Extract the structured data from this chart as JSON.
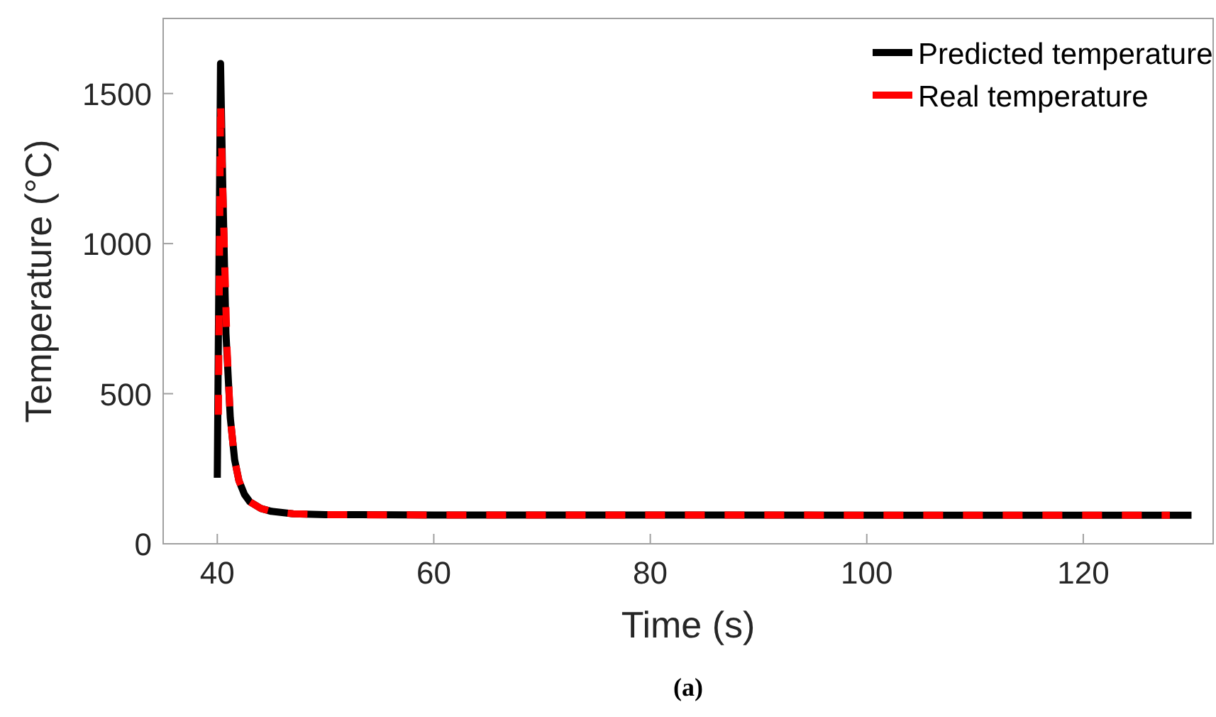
{
  "chart_data": {
    "type": "line",
    "xlabel": "Time (s)",
    "ylabel": "Temperature (°C)",
    "xlim": [
      35,
      132
    ],
    "ylim": [
      0,
      1750
    ],
    "xticks": [
      40,
      60,
      80,
      100,
      120
    ],
    "yticks": [
      0,
      500,
      1000,
      1500
    ],
    "legend": "top right",
    "grid": false,
    "annotations": [
      "(a)"
    ],
    "series": [
      {
        "name": "Predicted temperature",
        "color": "#000000",
        "line_style": "solid",
        "x": [
          40,
          40.3,
          40.5,
          40.8,
          41.2,
          41.6,
          42,
          42.5,
          43,
          44,
          45,
          47,
          50,
          60,
          130
        ],
        "values": [
          220,
          1600,
          1200,
          700,
          420,
          280,
          210,
          165,
          140,
          118,
          108,
          100,
          97,
          96,
          95
        ]
      },
      {
        "name": "Real temperature",
        "color": "#ff0000",
        "line_style": "dashed",
        "x": [
          40.1,
          40.3,
          40.6,
          40.9,
          41.2,
          41.6,
          42,
          42.5,
          43,
          44,
          45,
          47,
          50,
          60,
          128
        ],
        "values": [
          430,
          1470,
          1050,
          650,
          420,
          280,
          210,
          165,
          140,
          118,
          108,
          100,
          97,
          96,
          95
        ]
      }
    ]
  }
}
